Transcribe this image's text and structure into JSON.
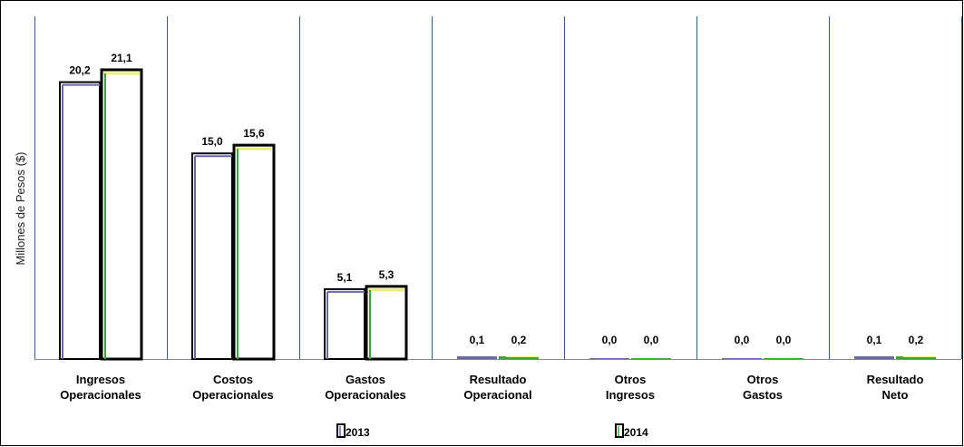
{
  "chart_data": {
    "type": "bar",
    "title": "",
    "xlabel": "",
    "ylabel": "Millones de Pesos ($)",
    "categories": [
      [
        "Ingresos",
        "Operacionales"
      ],
      [
        "Costos",
        "Operacionales"
      ],
      [
        "Gastos",
        "Operacionales"
      ],
      [
        "Resultado",
        "Operacional"
      ],
      [
        "Otros",
        "Ingresos"
      ],
      [
        "Otros",
        "Gastos"
      ],
      [
        "Resultado",
        "Neto"
      ]
    ],
    "series": [
      {
        "name": "2013",
        "values": [
          20.2,
          15.0,
          5.1,
          0.1,
          0.0,
          0.0,
          0.1
        ],
        "labels": [
          "20,2",
          "15,0",
          "5,1",
          "0,1",
          "0,0",
          "0,0",
          "0,1"
        ]
      },
      {
        "name": "2014",
        "values": [
          21.1,
          15.6,
          5.3,
          0.2,
          0.0,
          0.0,
          0.2
        ],
        "labels": [
          "21,1",
          "15,6",
          "5,3",
          "0,2",
          "0,0",
          "0,0",
          "0,2"
        ]
      }
    ],
    "ylim": [
      0,
      25
    ],
    "grid": false,
    "legend": "bottom",
    "colors": {
      "series_2013_edge": "#6a68a8",
      "series_2014_edge": "#3aa53a",
      "series_2014_top": "#e8f07a",
      "separator": "#2f5f8a"
    }
  }
}
